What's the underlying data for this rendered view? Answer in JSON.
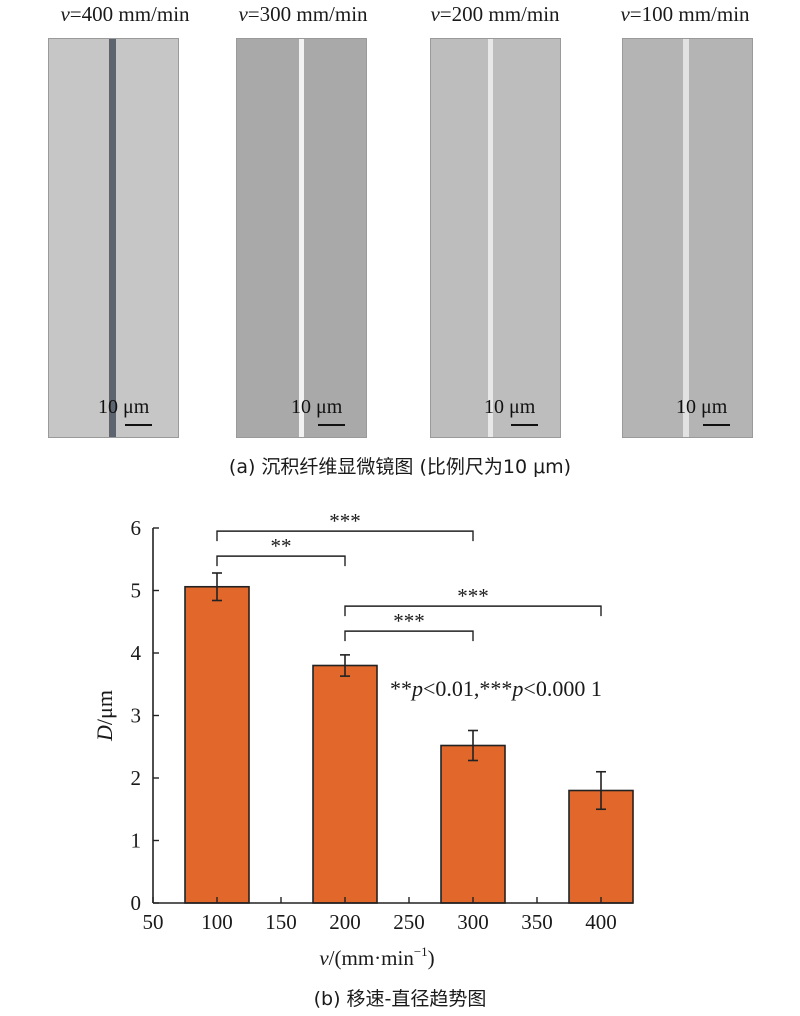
{
  "micrographs": [
    {
      "v_prefix": "v",
      "label_rest": "=400 mm/min",
      "scale_label": "10 μm",
      "bg": "#c6c6c6",
      "line": "#5c6470"
    },
    {
      "v_prefix": "v",
      "label_rest": "=300 mm/min",
      "scale_label": "10 μm",
      "bg": "#a9a9a9",
      "line": "#f2f2f2"
    },
    {
      "v_prefix": "v",
      "label_rest": "=200 mm/min",
      "scale_label": "10 μm",
      "bg": "#bdbdbd",
      "line": "#e8e8e8"
    },
    {
      "v_prefix": "v",
      "label_rest": "=100 mm/min",
      "scale_label": "10 μm",
      "bg": "#b4b4b4",
      "line": "#e2e2e2"
    }
  ],
  "caption_a": "(a) 沉积纤维显微镜图 (比例尺为10 μm)",
  "caption_b": "(b) 移速-直径趋势图",
  "chart_data": {
    "type": "bar",
    "x": [
      100,
      200,
      300,
      400
    ],
    "values": [
      5.06,
      3.8,
      2.52,
      1.8
    ],
    "errors": [
      0.22,
      0.17,
      0.24,
      0.3
    ],
    "bar_color": "#e2672a",
    "xlim": [
      50,
      425
    ],
    "ylim": [
      0,
      6
    ],
    "xticks": [
      50,
      100,
      150,
      200,
      250,
      300,
      350,
      400
    ],
    "yticks": [
      0,
      1,
      2,
      3,
      4,
      5,
      6
    ],
    "xlabel_var": "v",
    "xlabel_unit": "/(mm·min",
    "xlabel_sup": "−1",
    "xlabel_close": ")",
    "ylabel_var": "D",
    "ylabel_unit": "/μm",
    "significance": [
      {
        "from": 100,
        "to": 300,
        "y": 5.95,
        "label": "***"
      },
      {
        "from": 100,
        "to": 200,
        "y": 5.55,
        "label": "**"
      },
      {
        "from": 200,
        "to": 400,
        "y": 4.75,
        "label": "***"
      },
      {
        "from": 200,
        "to": 300,
        "y": 4.35,
        "label": "***"
      }
    ],
    "annotation": {
      "parts": [
        {
          "text": "**",
          "italic": false
        },
        {
          "text": "p",
          "italic": true
        },
        {
          "text": "<0.01,***",
          "italic": false
        },
        {
          "text": "p",
          "italic": true
        },
        {
          "text": "<0.000 1",
          "italic": false
        }
      ]
    }
  }
}
